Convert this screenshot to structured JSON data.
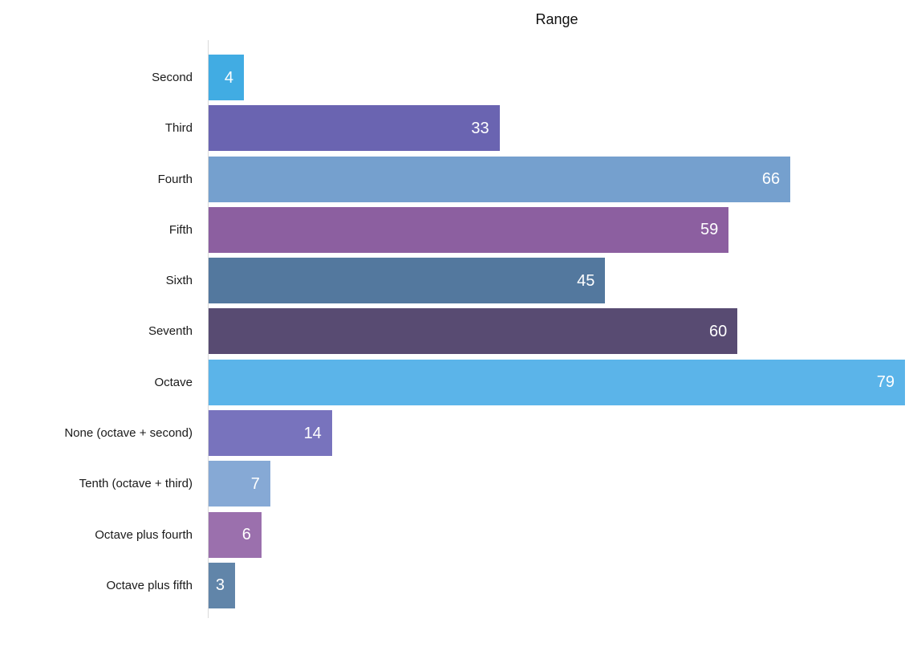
{
  "chart_data": {
    "type": "bar",
    "orientation": "horizontal",
    "title": "Range",
    "categories": [
      "Second",
      "Third",
      "Fourth",
      "Fifth",
      "Sixth",
      "Seventh",
      "Octave",
      "None (octave + second)",
      "Tenth (octave + third)",
      "Octave plus fourth",
      "Octave plus fifth"
    ],
    "values": [
      4,
      33,
      66,
      59,
      45,
      60,
      79,
      14,
      7,
      6,
      3
    ],
    "bar_colors": [
      "#41ACE3",
      "#6A64B1",
      "#75A0CE",
      "#8C5FA0",
      "#53789E",
      "#584B72",
      "#5BB4E9",
      "#7873BD",
      "#86A9D5",
      "#9B70AD",
      "#6185A9"
    ],
    "xlim": [
      0,
      79
    ],
    "xlabel": "",
    "ylabel": "",
    "grid": false,
    "legend": false,
    "value_label_style": "inside-end white",
    "value_label_color": "#ffffff",
    "category_label_color": "#1a1a1a",
    "axis_line_color": "#d9d9d9",
    "background_color": "#ffffff"
  }
}
